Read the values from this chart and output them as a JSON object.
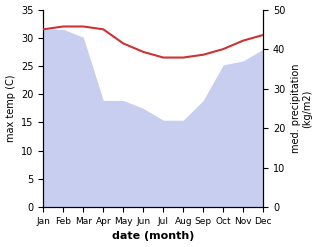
{
  "months": [
    "Jan",
    "Feb",
    "Mar",
    "Apr",
    "May",
    "Jun",
    "Jul",
    "Aug",
    "Sep",
    "Oct",
    "Nov",
    "Dec"
  ],
  "x": [
    0,
    1,
    2,
    3,
    4,
    5,
    6,
    7,
    8,
    9,
    10,
    11
  ],
  "max_temp": [
    31.5,
    32.0,
    32.0,
    31.5,
    29.0,
    27.5,
    26.5,
    26.5,
    27.0,
    28.0,
    29.5,
    30.5
  ],
  "precipitation": [
    45.0,
    45.0,
    43.0,
    27.0,
    27.0,
    25.0,
    22.0,
    22.0,
    27.0,
    36.0,
    37.0,
    40.0
  ],
  "temp_color": "#cc3333",
  "precip_color": "#aab4e8",
  "precip_alpha": 0.65,
  "temp_ylim": [
    0,
    35
  ],
  "precip_ylim": [
    0,
    50
  ],
  "temp_yticks": [
    0,
    5,
    10,
    15,
    20,
    25,
    30,
    35
  ],
  "precip_yticks": [
    0,
    10,
    20,
    30,
    40,
    50
  ],
  "xlabel": "date (month)",
  "ylabel_left": "max temp (C)",
  "ylabel_right": "med. precipitation\n(kg/m2)",
  "figsize": [
    3.18,
    2.47
  ],
  "dpi": 100
}
